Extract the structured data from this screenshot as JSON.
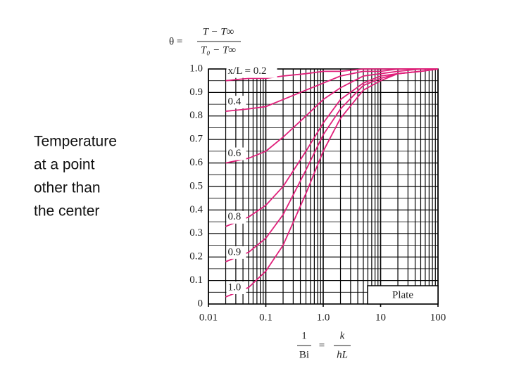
{
  "side_text": [
    "Temperature",
    "at a point",
    "other than",
    "the center"
  ],
  "chart_data": {
    "type": "line",
    "theta_label": "θ =",
    "theta_numerator": "T − T∞",
    "theta_denominator": "T₀ − T∞",
    "xlabel_numerator": "1",
    "xlabel_denominator": "Bi",
    "xlabel_equals": "=",
    "xlabel_right_numerator": "k",
    "xlabel_right_denominator": "hL",
    "annotation": "Plate",
    "x": [
      0.02,
      0.05,
      0.1,
      0.2,
      0.5,
      1,
      2,
      5,
      10,
      20,
      50,
      100
    ],
    "series": [
      {
        "name": "x/L = 0.2",
        "color": "#e0207a",
        "values": [
          0.95,
          0.96,
          0.96,
          0.97,
          0.98,
          0.99,
          0.99,
          1.0,
          1.0,
          1.0,
          1.0,
          1.0
        ]
      },
      {
        "name": "0.4",
        "color": "#e0207a",
        "values": [
          0.82,
          0.83,
          0.84,
          0.87,
          0.91,
          0.94,
          0.97,
          0.99,
          0.99,
          1.0,
          1.0,
          1.0
        ]
      },
      {
        "name": "0.6",
        "color": "#e0207a",
        "values": [
          0.6,
          0.62,
          0.65,
          0.71,
          0.8,
          0.87,
          0.92,
          0.97,
          0.98,
          0.99,
          1.0,
          1.0
        ]
      },
      {
        "name": "0.8",
        "color": "#e0207a",
        "values": [
          0.33,
          0.37,
          0.42,
          0.5,
          0.65,
          0.77,
          0.87,
          0.94,
          0.97,
          0.98,
          0.99,
          1.0
        ]
      },
      {
        "name": "0.9",
        "color": "#e0207a",
        "values": [
          0.18,
          0.22,
          0.28,
          0.38,
          0.57,
          0.72,
          0.83,
          0.93,
          0.96,
          0.98,
          0.99,
          1.0
        ]
      },
      {
        "name": "1.0",
        "color": "#e0207a",
        "values": [
          0.03,
          0.07,
          0.14,
          0.25,
          0.47,
          0.65,
          0.79,
          0.91,
          0.95,
          0.98,
          0.99,
          1.0
        ]
      }
    ],
    "xscale": "log",
    "xlim": [
      0.01,
      100
    ],
    "xticks": [
      0.01,
      0.1,
      {
        "value": 1,
        "label": "1.0"
      },
      10,
      100
    ],
    "x_minor_ticks": [
      0.02,
      0.03,
      0.04,
      0.05,
      0.06,
      0.07,
      0.08,
      0.09,
      0.2,
      0.3,
      0.4,
      0.5,
      0.6,
      0.7,
      0.8,
      0.9,
      2,
      3,
      4,
      5,
      6,
      7,
      8,
      9,
      20,
      30,
      40,
      50,
      60,
      70,
      80,
      90
    ],
    "ylim": [
      0,
      1
    ],
    "yticks": [
      0,
      0.1,
      0.2,
      0.3,
      0.4,
      0.5,
      0.6,
      0.7,
      0.8,
      0.9,
      {
        "value": 1,
        "label": "1.0"
      }
    ],
    "y_minor_ticks": [
      0.05,
      0.15,
      0.25,
      0.35,
      0.45,
      0.55,
      0.65,
      0.75,
      0.85,
      0.95
    ],
    "grid": true
  }
}
